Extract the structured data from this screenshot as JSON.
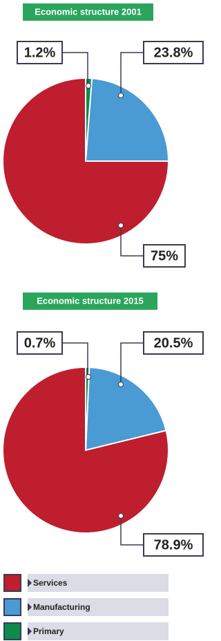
{
  "chart_data": [
    {
      "type": "pie",
      "title": "Economic structure 2001",
      "categories": [
        "Services",
        "Manufacturing",
        "Primary"
      ],
      "values": [
        75,
        23.8,
        1.2
      ],
      "value_labels": [
        "75%",
        "23.8%",
        "1.2%"
      ],
      "colors": [
        "#be1e2d",
        "#4a9ad4",
        "#0e8a4a"
      ]
    },
    {
      "type": "pie",
      "title": "Economic structure 2015",
      "categories": [
        "Services",
        "Manufacturing",
        "Primary"
      ],
      "values": [
        78.9,
        20.5,
        0.7
      ],
      "value_labels": [
        "78.9%",
        "20.5%",
        "0.7%"
      ],
      "colors": [
        "#be1e2d",
        "#4a9ad4",
        "#0e8a4a"
      ]
    }
  ]
}
